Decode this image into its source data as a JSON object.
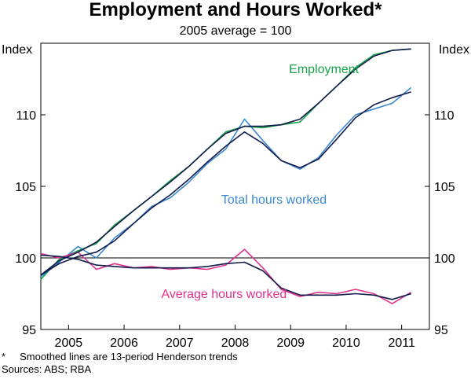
{
  "chart_data": {
    "type": "line",
    "title": "Employment and Hours Worked*",
    "subtitle": "2005 average = 100",
    "ylabel_left": "Index",
    "ylabel_right": "Index",
    "ylim": [
      95,
      115
    ],
    "yticks": [
      95,
      100,
      105,
      110
    ],
    "xlim": [
      2004.5,
      2011.5
    ],
    "xticks": [
      {
        "label": "2005",
        "x": 2005
      },
      {
        "label": "2006",
        "x": 2006
      },
      {
        "label": "2007",
        "x": 2007
      },
      {
        "label": "2008",
        "x": 2008
      },
      {
        "label": "2009",
        "x": 2009
      },
      {
        "label": "2010",
        "x": 2010
      },
      {
        "label": "2011",
        "x": 2011
      }
    ],
    "reference_line": 100,
    "grid": false,
    "colors": {
      "employment": "#17a349",
      "total_hours": "#3b87d0",
      "average_hours": "#e0318e",
      "trend": "#101b4a"
    },
    "series": [
      {
        "key": "employment",
        "name": "Employment",
        "color": "#17a349",
        "x": [
          2004.5,
          2004.83,
          2005.17,
          2005.5,
          2005.83,
          2006.17,
          2006.5,
          2006.83,
          2007.17,
          2007.5,
          2007.83,
          2008.17,
          2008.5,
          2008.83,
          2009.17,
          2009.5,
          2009.83,
          2010.17,
          2010.5,
          2010.83,
          2011.17
        ],
        "y": [
          98.5,
          99.9,
          100.5,
          101.0,
          102.3,
          103.3,
          104.3,
          105.4,
          106.4,
          107.6,
          108.8,
          109.2,
          109.1,
          109.3,
          109.5,
          110.8,
          112.0,
          113.3,
          114.2,
          114.5,
          114.6
        ],
        "trend": [
          98.8,
          99.8,
          100.4,
          101.1,
          102.2,
          103.3,
          104.3,
          105.3,
          106.4,
          107.6,
          108.7,
          109.2,
          109.2,
          109.3,
          109.7,
          110.8,
          112.0,
          113.2,
          114.1,
          114.5,
          114.6
        ]
      },
      {
        "key": "total_hours",
        "name": "Total hours worked",
        "color": "#3b87d0",
        "x": [
          2004.5,
          2004.83,
          2005.17,
          2005.5,
          2005.83,
          2006.17,
          2006.5,
          2006.83,
          2007.17,
          2007.5,
          2007.83,
          2008.17,
          2008.5,
          2008.83,
          2009.17,
          2009.5,
          2009.83,
          2010.17,
          2010.5,
          2010.83,
          2011.17
        ],
        "y": [
          98.7,
          99.7,
          100.8,
          100.0,
          101.4,
          102.4,
          103.6,
          104.2,
          105.3,
          106.6,
          107.6,
          109.7,
          108.2,
          106.8,
          106.2,
          107.0,
          108.6,
          110.0,
          110.4,
          110.8,
          111.9
        ],
        "trend": [
          98.8,
          99.6,
          100.1,
          100.4,
          101.2,
          102.4,
          103.5,
          104.4,
          105.5,
          106.7,
          107.8,
          108.8,
          108.0,
          106.8,
          106.3,
          106.9,
          108.3,
          109.8,
          110.7,
          111.2,
          111.6
        ]
      },
      {
        "key": "average_hours",
        "name": "Average hours worked",
        "color": "#e0318e",
        "x": [
          2004.5,
          2004.83,
          2005.17,
          2005.5,
          2005.83,
          2006.17,
          2006.5,
          2006.83,
          2007.17,
          2007.5,
          2007.83,
          2008.17,
          2008.5,
          2008.83,
          2009.17,
          2009.5,
          2009.83,
          2010.17,
          2010.5,
          2010.83,
          2011.17
        ],
        "y": [
          100.3,
          100.0,
          100.4,
          99.2,
          99.6,
          99.3,
          99.4,
          99.2,
          99.3,
          99.2,
          99.5,
          100.6,
          99.3,
          97.8,
          97.3,
          97.6,
          97.5,
          97.8,
          97.5,
          96.8,
          97.6
        ],
        "trend": [
          100.2,
          100.1,
          99.9,
          99.5,
          99.4,
          99.3,
          99.3,
          99.3,
          99.3,
          99.4,
          99.6,
          99.7,
          99.1,
          97.9,
          97.4,
          97.4,
          97.4,
          97.5,
          97.4,
          97.1,
          97.5
        ]
      }
    ],
    "series_labels": [
      {
        "key": "employment",
        "text": "Employment",
        "x": 2009.6,
        "y": 112.9
      },
      {
        "key": "total_hours",
        "text": "Total hours worked",
        "x": 2008.7,
        "y": 103.8
      },
      {
        "key": "average_hours",
        "text": "Average hours worked",
        "x": 2007.8,
        "y": 97.2
      }
    ]
  },
  "footnotes": {
    "note": "*     Smoothed lines are 13-period Henderson trends",
    "sources": "Sources: ABS; RBA"
  }
}
